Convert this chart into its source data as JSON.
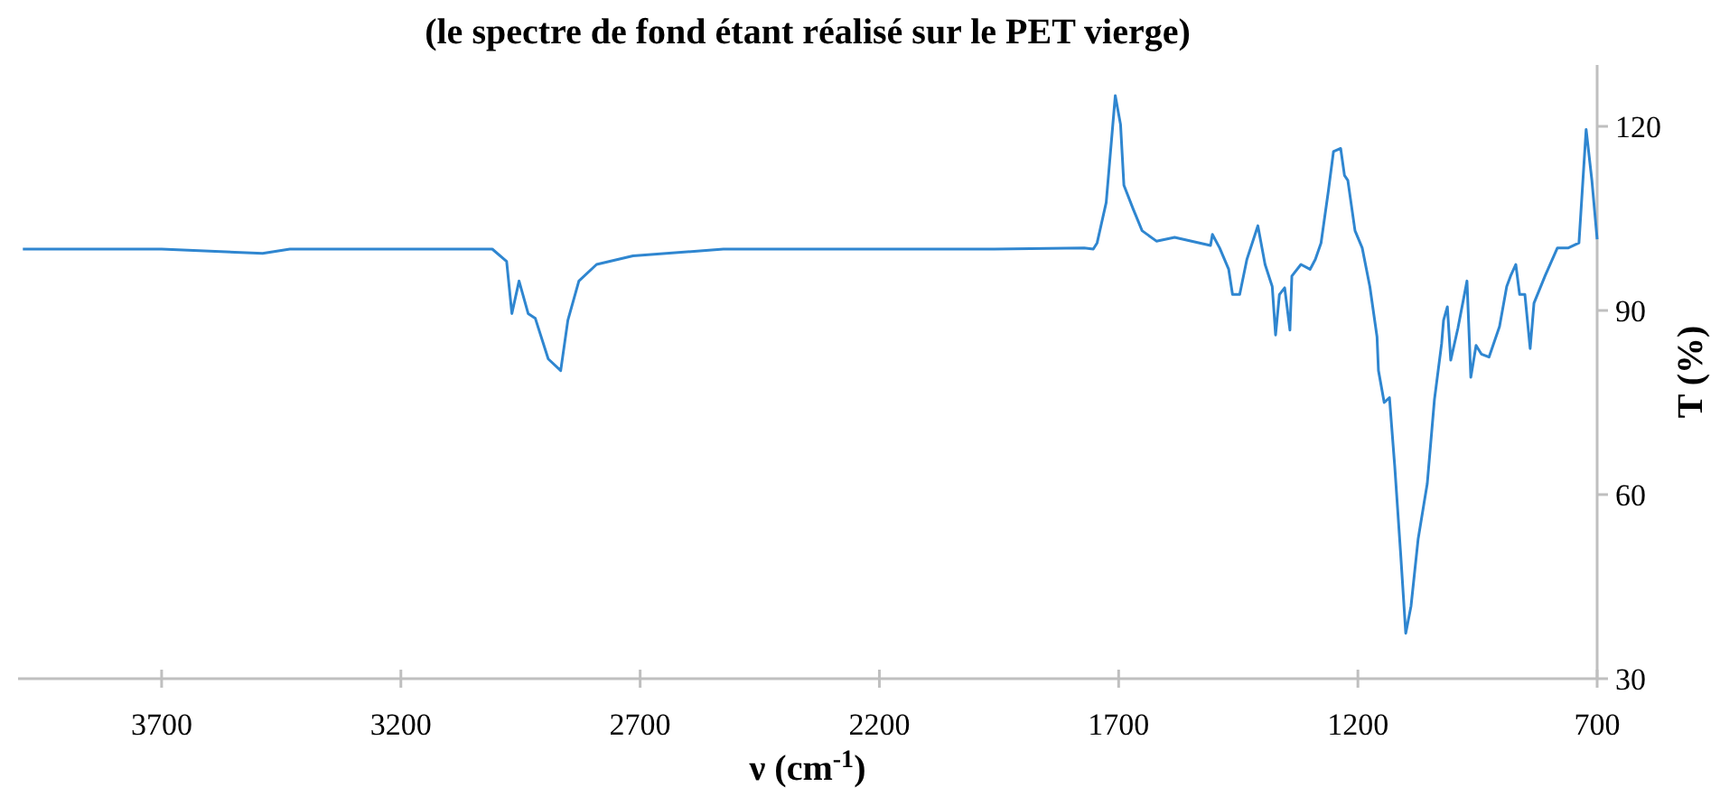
{
  "chart_data": {
    "type": "line",
    "subtitle": "(le spectre de fond étant réalisé sur le PET vierge)",
    "xlabel": "ν (cm$^{-1}$)",
    "y2label": "T (%)",
    "xlim": [
      4000,
      700
    ],
    "xticks": [
      3700,
      3200,
      2700,
      2200,
      1700,
      1200,
      700
    ],
    "y2lim": [
      30,
      130
    ],
    "y2ticks": [
      30,
      60,
      90,
      120
    ],
    "grid": false,
    "marker": "none",
    "line_style": "solid",
    "series": [
      {
        "axis": "y2",
        "color": "#2f86d0",
        "x": [
          3990,
          3700,
          3489,
          3432,
          3281,
          3111,
          3009,
          2979,
          2968,
          2953,
          2934,
          2919,
          2892,
          2866,
          2851,
          2828,
          2791,
          2715,
          2526,
          2200,
          1960,
          1772,
          1753,
          1745,
          1726,
          1707,
          1696,
          1689,
          1670,
          1651,
          1621,
          1583,
          1508,
          1504,
          1489,
          1470,
          1462,
          1447,
          1432,
          1409,
          1394,
          1379,
          1372,
          1364,
          1353,
          1342,
          1338,
          1319,
          1300,
          1289,
          1277,
          1262,
          1251,
          1236,
          1228,
          1221,
          1206,
          1191,
          1175,
          1160,
          1157,
          1145,
          1134,
          1123,
          1111,
          1100,
          1089,
          1074,
          1062,
          1055,
          1040,
          1025,
          1021,
          1013,
          1006,
          991,
          972,
          964,
          953,
          942,
          926,
          904,
          889,
          881,
          870,
          862,
          851,
          840,
          832,
          809,
          783,
          760,
          738,
          723,
          711,
          700
        ],
        "values": [
          100,
          100,
          99.3,
          100,
          100,
          100,
          100,
          98,
          89.5,
          94.8,
          89.5,
          88.7,
          82.1,
          80.2,
          88.4,
          94.8,
          97.5,
          98.9,
          100,
          100,
          100,
          100.2,
          100,
          101,
          107.6,
          125,
          120.3,
          110.4,
          106.6,
          103,
          101.3,
          101.9,
          100.6,
          102.4,
          100.2,
          96.7,
          92.6,
          92.6,
          98.3,
          103.8,
          97.5,
          93.9,
          86,
          92.6,
          93.7,
          86.8,
          95.6,
          97.5,
          96.7,
          98.3,
          101,
          109.3,
          115.9,
          116.4,
          112,
          111.2,
          103,
          100.2,
          93.9,
          85.7,
          80.2,
          75,
          75.8,
          64.6,
          50.8,
          37.4,
          41.8,
          52.8,
          58.5,
          61.8,
          75.5,
          84.6,
          88.4,
          90.6,
          81.9,
          87.1,
          94.8,
          79.1,
          84.3,
          82.9,
          82.4,
          87.4,
          93.9,
          95.6,
          97.5,
          92.6,
          92.6,
          83.8,
          91.2,
          95.6,
          100.2,
          100.2,
          101,
          119.5,
          111.2,
          101.6
        ]
      }
    ]
  }
}
